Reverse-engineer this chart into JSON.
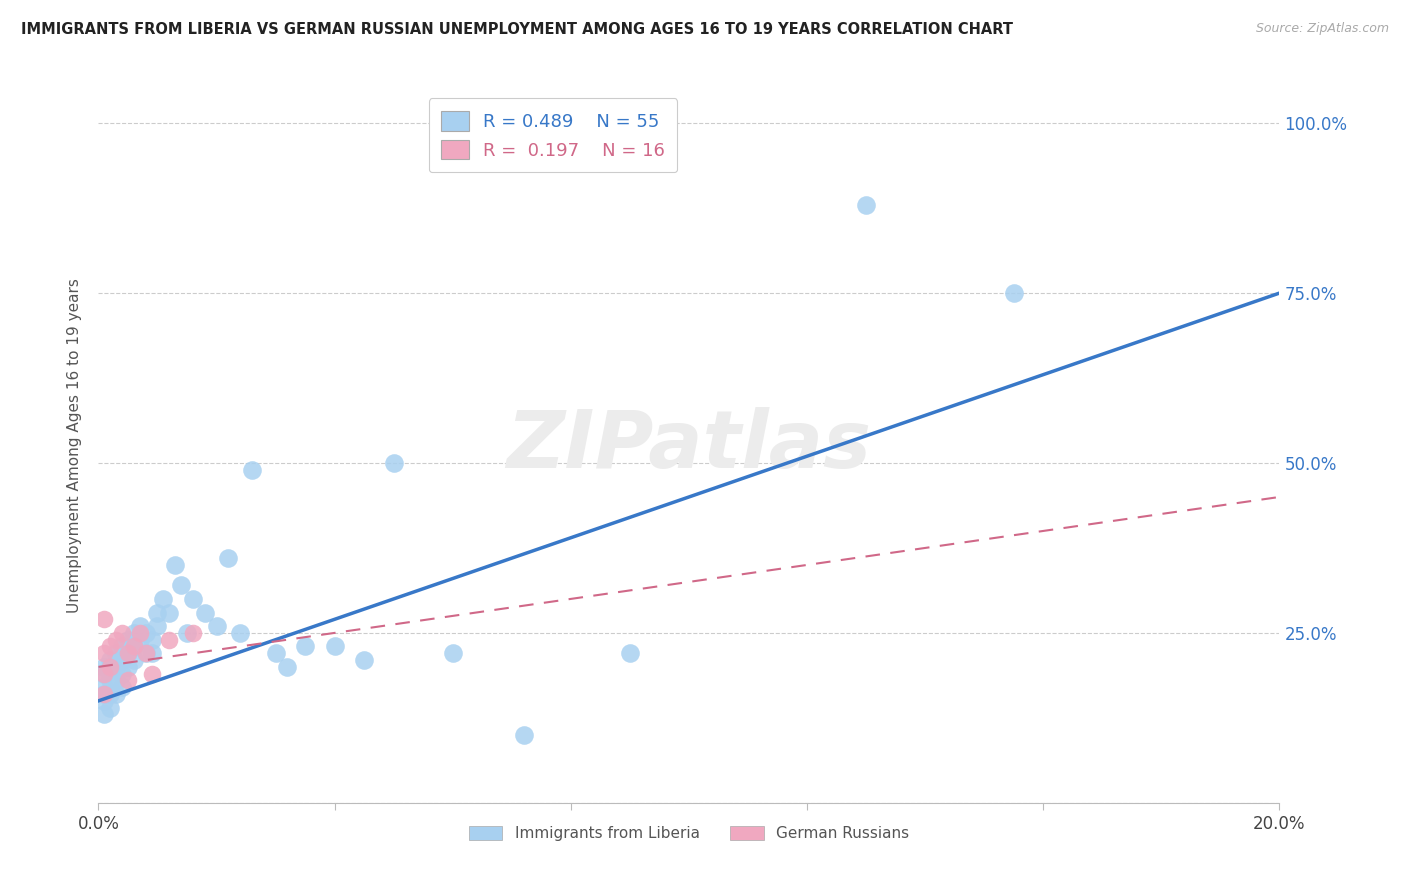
{
  "title": "IMMIGRANTS FROM LIBERIA VS GERMAN RUSSIAN UNEMPLOYMENT AMONG AGES 16 TO 19 YEARS CORRELATION CHART",
  "source": "Source: ZipAtlas.com",
  "ylabel": "Unemployment Among Ages 16 to 19 years",
  "xlim": [
    0.0,
    0.2
  ],
  "ylim": [
    0.0,
    1.05
  ],
  "liberia_R": 0.489,
  "liberia_N": 55,
  "german_russian_R": 0.197,
  "german_russian_N": 16,
  "liberia_color": "#a8d0f0",
  "german_russian_color": "#f0a8c0",
  "trendline_liberia_color": "#3878c8",
  "trendline_german_color": "#d06888",
  "trendline_liberia_y0": 0.15,
  "trendline_liberia_y1": 0.75,
  "trendline_german_y0": 0.2,
  "trendline_german_y1": 0.45,
  "liberia_x": [
    0.001,
    0.001,
    0.001,
    0.001,
    0.001,
    0.001,
    0.002,
    0.002,
    0.002,
    0.002,
    0.002,
    0.003,
    0.003,
    0.003,
    0.003,
    0.004,
    0.004,
    0.004,
    0.004,
    0.005,
    0.005,
    0.005,
    0.006,
    0.006,
    0.006,
    0.007,
    0.007,
    0.008,
    0.008,
    0.009,
    0.009,
    0.01,
    0.01,
    0.011,
    0.012,
    0.013,
    0.014,
    0.015,
    0.016,
    0.018,
    0.02,
    0.022,
    0.024,
    0.026,
    0.03,
    0.032,
    0.035,
    0.04,
    0.045,
    0.05,
    0.06,
    0.072,
    0.09,
    0.13,
    0.155
  ],
  "liberia_y": [
    0.2,
    0.19,
    0.17,
    0.16,
    0.15,
    0.13,
    0.21,
    0.2,
    0.18,
    0.16,
    0.14,
    0.22,
    0.2,
    0.18,
    0.16,
    0.23,
    0.21,
    0.19,
    0.17,
    0.24,
    0.22,
    0.2,
    0.25,
    0.23,
    0.21,
    0.26,
    0.24,
    0.25,
    0.22,
    0.24,
    0.22,
    0.26,
    0.28,
    0.3,
    0.28,
    0.35,
    0.32,
    0.25,
    0.3,
    0.28,
    0.26,
    0.36,
    0.25,
    0.49,
    0.22,
    0.2,
    0.23,
    0.23,
    0.21,
    0.5,
    0.22,
    0.1,
    0.22,
    0.88,
    0.75
  ],
  "german_x": [
    0.001,
    0.001,
    0.001,
    0.001,
    0.002,
    0.002,
    0.003,
    0.004,
    0.005,
    0.005,
    0.006,
    0.007,
    0.008,
    0.009,
    0.012,
    0.016
  ],
  "german_y": [
    0.27,
    0.22,
    0.19,
    0.16,
    0.23,
    0.2,
    0.24,
    0.25,
    0.22,
    0.18,
    0.23,
    0.25,
    0.22,
    0.19,
    0.24,
    0.25
  ]
}
